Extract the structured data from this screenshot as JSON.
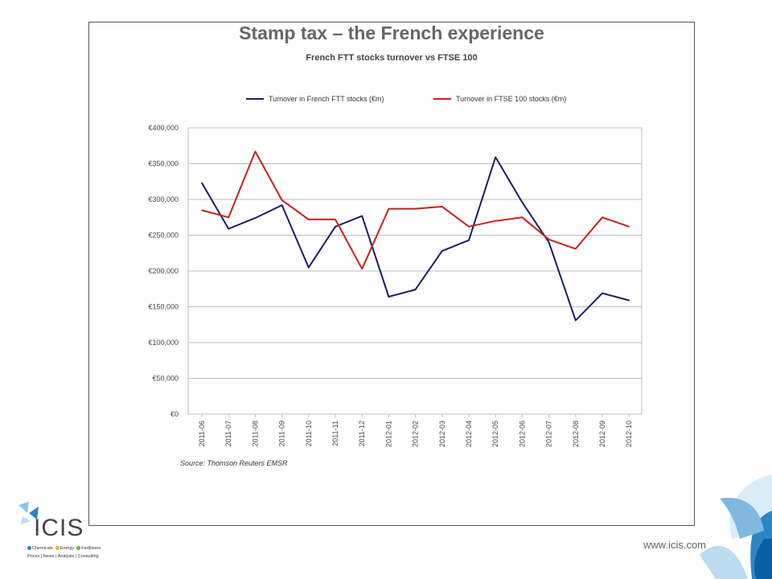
{
  "chart_data": {
    "type": "line",
    "title": "Stamp tax – the French experience",
    "subtitle": "French FTT stocks turnover vs FTSE 100",
    "xlabel": "",
    "ylabel": "",
    "ylim": [
      0,
      400000
    ],
    "yticks": [
      0,
      50000,
      100000,
      150000,
      200000,
      250000,
      300000,
      350000,
      400000
    ],
    "ytick_labels": [
      "€0",
      "€50,000",
      "€100,000",
      "€150,000",
      "€200,000",
      "€250,000",
      "€300,000",
      "€350,000",
      "€400,000"
    ],
    "categories": [
      "2011-06",
      "2011-07",
      "2011-08",
      "2011-09",
      "2011-10",
      "2011-11",
      "2011-12",
      "2012-01",
      "2012-02",
      "2012-03",
      "2012-04",
      "2012-05",
      "2012-06",
      "2012-07",
      "2012-08",
      "2012-09",
      "2012-10"
    ],
    "grid": true,
    "legend_position": "top",
    "series": [
      {
        "name": "Turnover in French FTT stocks (€m)",
        "color": "#1a1f5e",
        "values": [
          323000,
          259000,
          274000,
          292000,
          205000,
          262000,
          277000,
          164000,
          174000,
          228000,
          243000,
          359000,
          296000,
          240000,
          131000,
          169000,
          159000
        ]
      },
      {
        "name": "Turnover in FTSE 100 stocks (€m)",
        "color": "#c8211e",
        "values": [
          285000,
          275000,
          367000,
          299000,
          272000,
          272000,
          203000,
          287000,
          287000,
          290000,
          262000,
          270000,
          275000,
          244000,
          231000,
          275000,
          262000
        ]
      }
    ],
    "source": "Source: Thomson Reuters EMSR"
  },
  "footer": {
    "website": "www.icis.com",
    "logo_text": "ICIS",
    "logo_sectors": [
      "Chemicals",
      "Energy",
      "Fertilizers"
    ],
    "logo_sector_colors": [
      "#2a7fc1",
      "#f2b233",
      "#6bb34a"
    ],
    "logo_services": "Prices | News | Analysis | Consulting"
  }
}
